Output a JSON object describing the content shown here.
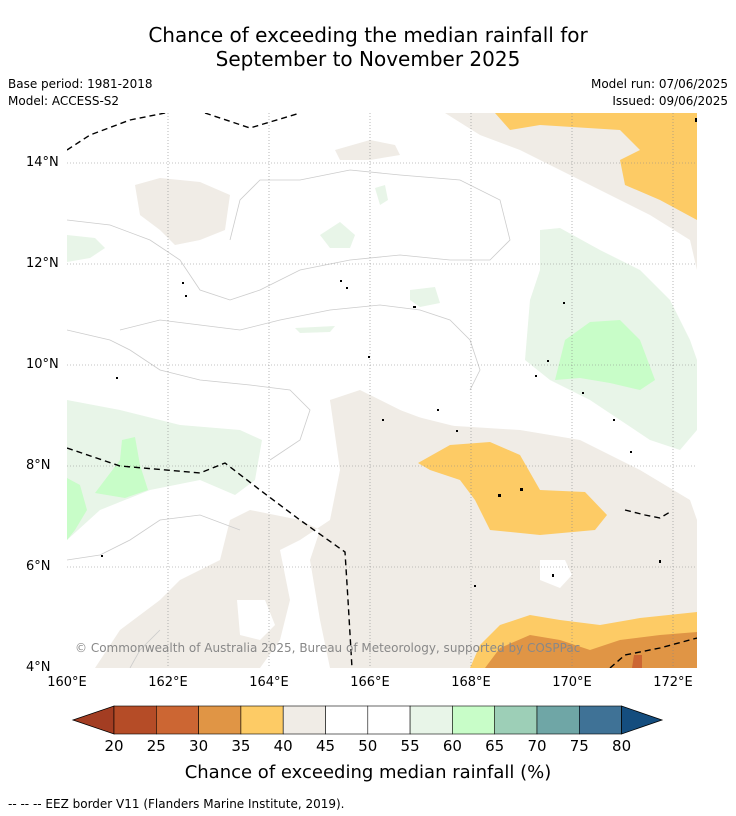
{
  "header": {
    "title_line1": "Chance of exceeding the median rainfall for",
    "title_line2": "September to November 2025",
    "base_period": "Base period: 1981-2018",
    "model": "Model: ACCESS-S2",
    "model_run": "Model run: 07/06/2025",
    "issued": "Issued: 09/06/2025"
  },
  "map": {
    "lat_ticks": [
      "14°N",
      "12°N",
      "10°N",
      "8°N",
      "6°N",
      "4°N"
    ],
    "lon_ticks": [
      "160°E",
      "162°E",
      "164°E",
      "166°E",
      "168°E",
      "170°E",
      "172°E"
    ],
    "copyright": "© Commonwealth of Australia 2025, Bureau of Meteorology, supported by COSPPac",
    "ocean_color": "#ffffff",
    "grid": true,
    "border_style": "dashed black line (EEZ border)"
  },
  "colorbar": {
    "title": "Chance of exceeding median rainfall (%)",
    "labels": [
      "20",
      "25",
      "30",
      "35",
      "40",
      "45",
      "50",
      "55",
      "60",
      "65",
      "70",
      "75",
      "80"
    ],
    "colors": [
      "#a33d22",
      "#b54c27",
      "#cc6633",
      "#e09545",
      "#fdcb65",
      "#f0ece6",
      "#ffffff",
      "#ffffff",
      "#e8f5e8",
      "#c8fdc8",
      "#9dcfb7",
      "#6fa6a6",
      "#3f7296",
      "#144d7e"
    ],
    "under_color": "#a33d22",
    "over_color": "#144d7e"
  },
  "footer": {
    "text": "--  --  -- EEZ border V11 (Flanders Marine Institute, 2019)."
  }
}
